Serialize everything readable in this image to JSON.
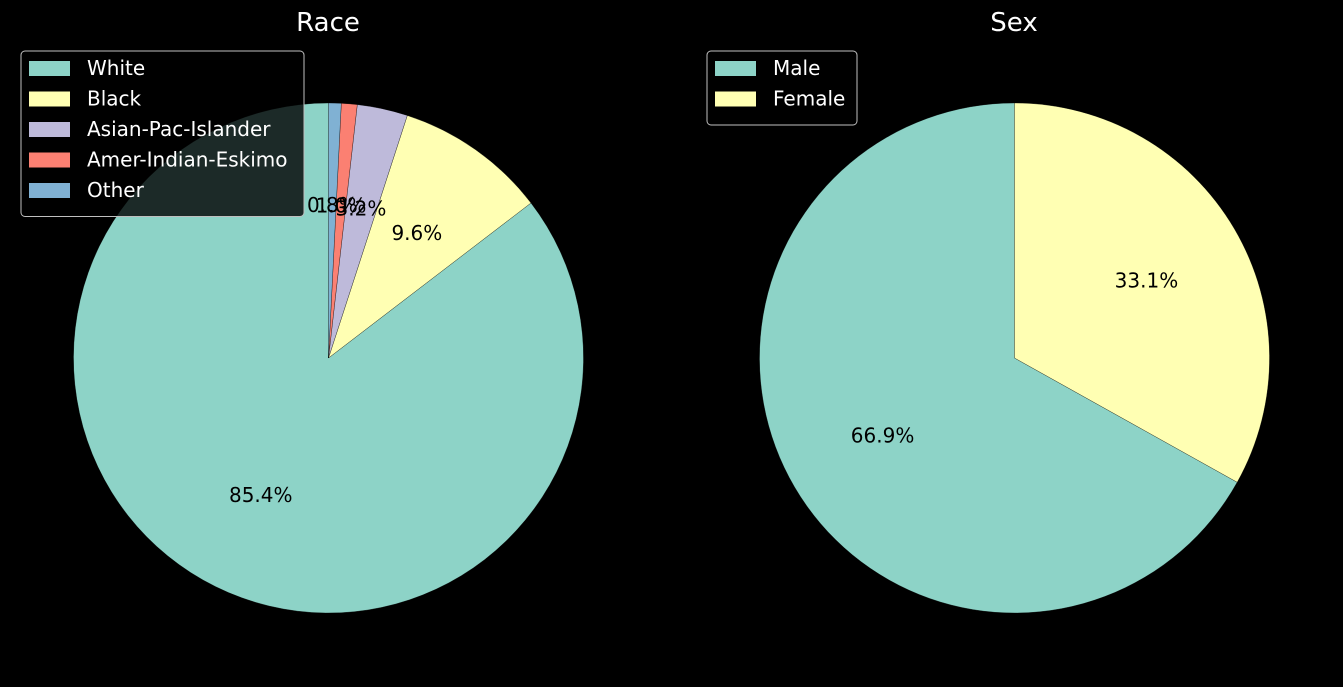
{
  "chart_data": [
    {
      "type": "pie",
      "title": "Race",
      "start_angle_deg": 90,
      "direction": "counterclockwise",
      "legend_position": "top-left",
      "slices": [
        {
          "label": "White",
          "value": 85.4,
          "pct_label": "85.4%",
          "color": "#8dd3c7"
        },
        {
          "label": "Black",
          "value": 9.6,
          "pct_label": "9.6%",
          "color": "#ffffb3"
        },
        {
          "label": "Asian-Pac-Islander",
          "value": 3.2,
          "pct_label": "3.2%",
          "color": "#bebada"
        },
        {
          "label": "Amer-Indian-Eskimo",
          "value": 1.0,
          "pct_label": "1.0%",
          "color": "#fb8072"
        },
        {
          "label": "Other",
          "value": 0.8,
          "pct_label": "0.8%",
          "color": "#80b1d3"
        }
      ]
    },
    {
      "type": "pie",
      "title": "Sex",
      "start_angle_deg": 90,
      "direction": "counterclockwise",
      "legend_position": "top-left",
      "slices": [
        {
          "label": "Male",
          "value": 66.9,
          "pct_label": "66.9%",
          "color": "#8dd3c7"
        },
        {
          "label": "Female",
          "value": 33.1,
          "pct_label": "33.1%",
          "color": "#ffffb3"
        }
      ]
    }
  ]
}
